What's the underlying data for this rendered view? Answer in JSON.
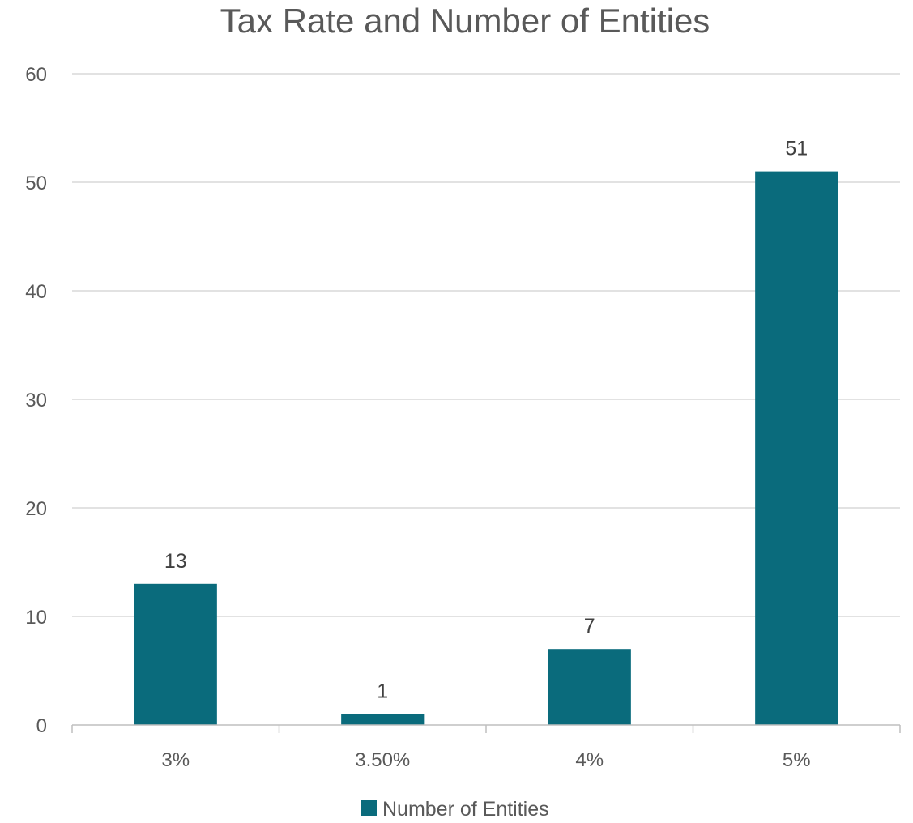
{
  "chart_data": {
    "type": "bar",
    "title": "Tax Rate and  Number of Entities",
    "xlabel": "",
    "ylabel": "",
    "categories": [
      "3%",
      "3.50%",
      "4%",
      "5%"
    ],
    "series": [
      {
        "name": "Number of Entities",
        "values": [
          13,
          1,
          7,
          51
        ],
        "color": "#0a6b7c"
      }
    ],
    "ylim": [
      0,
      60
    ],
    "yticks": [
      0,
      10,
      20,
      30,
      40,
      50,
      60
    ],
    "grid": true,
    "legend_position": "bottom",
    "data_labels": true
  }
}
